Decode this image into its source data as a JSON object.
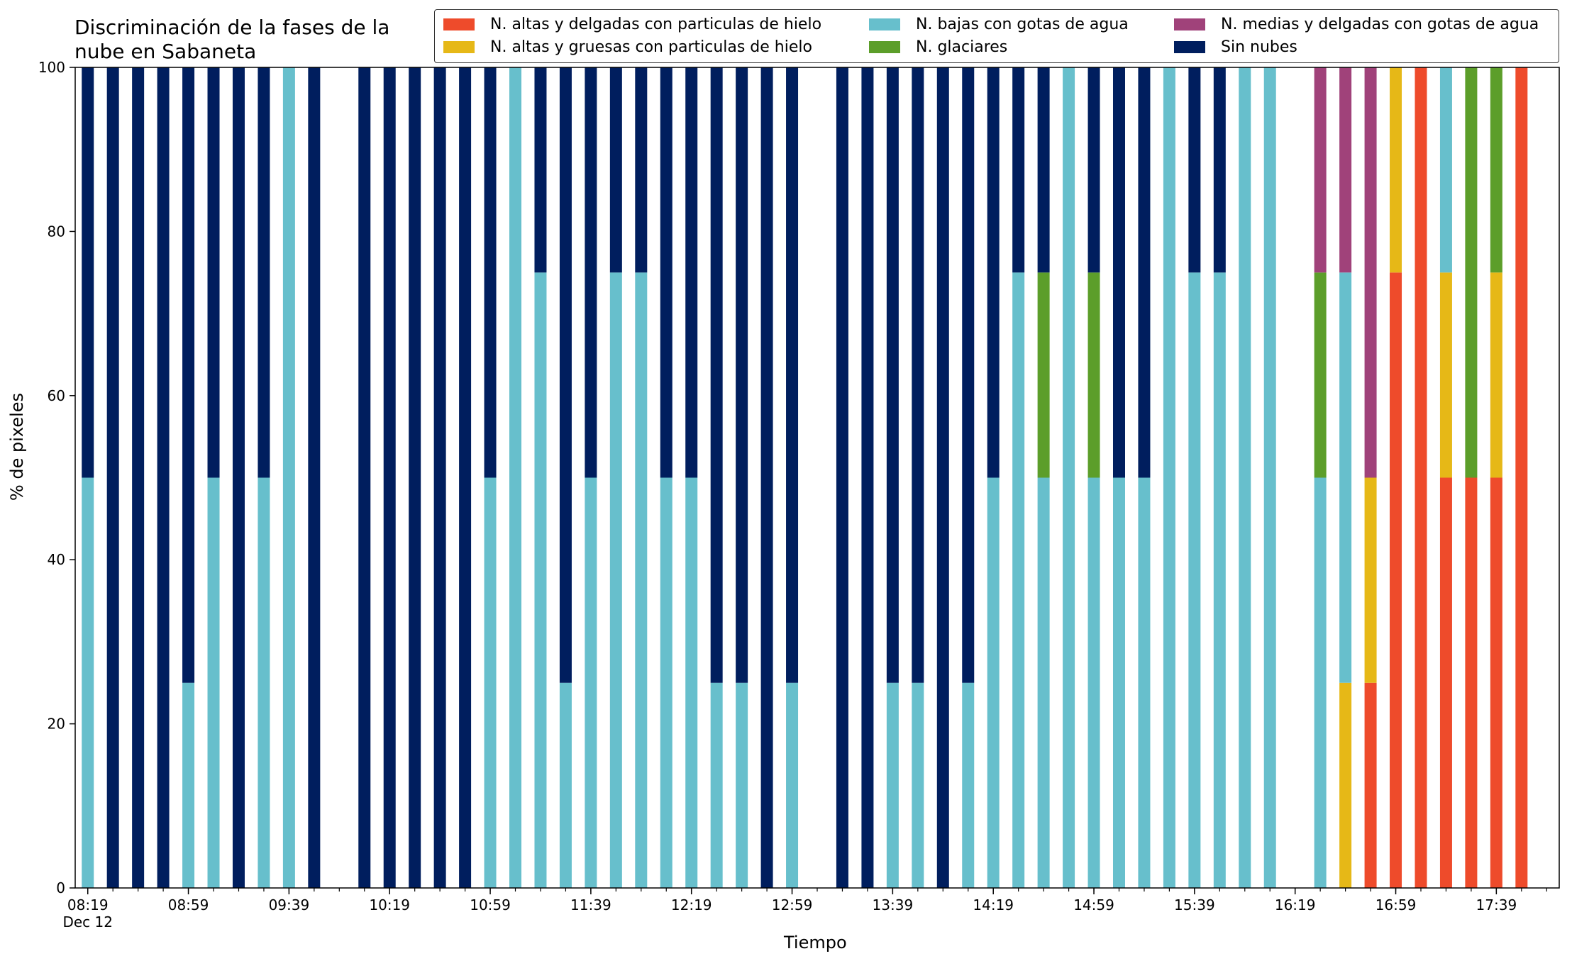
{
  "chart_data": {
    "type": "bar",
    "stacked": true,
    "title": "Discriminación de la fases de la\nnube en Sabaneta",
    "xlabel": "Tiempo",
    "ylabel": "% de pixeles",
    "ylim": [
      0,
      100
    ],
    "yticks": [
      "0",
      "20",
      "40",
      "60",
      "80",
      "100"
    ],
    "xticks": [
      {
        "label": "08:19\nDec 12",
        "minute": 0
      },
      {
        "label": "08:59",
        "minute": 40
      },
      {
        "label": "09:39",
        "minute": 80
      },
      {
        "label": "10:19",
        "minute": 120
      },
      {
        "label": "10:59",
        "minute": 160
      },
      {
        "label": "11:39",
        "minute": 200
      },
      {
        "label": "12:19",
        "minute": 240
      },
      {
        "label": "12:59",
        "minute": 280
      },
      {
        "label": "13:39",
        "minute": 320
      },
      {
        "label": "14:19",
        "minute": 360
      },
      {
        "label": "14:59",
        "minute": 400
      },
      {
        "label": "15:39",
        "minute": 440
      },
      {
        "label": "16:19",
        "minute": 480
      },
      {
        "label": "16:59",
        "minute": 520
      },
      {
        "label": "17:39",
        "minute": 560
      }
    ],
    "xlim_minutes": [
      -5,
      585
    ],
    "legend_position": "top-right",
    "series": [
      {
        "name": "N. altas y delgadas con particulas de hielo",
        "color": "#EE4B2B"
      },
      {
        "name": "N. altas y gruesas con particulas de hielo",
        "color": "#E6B817"
      },
      {
        "name": "N. bajas con gotas de agua",
        "color": "#67BFCC"
      },
      {
        "name": "N. glaciares",
        "color": "#5C9E2A"
      },
      {
        "name": "N. medias y delgadas con gotas de agua",
        "color": "#A0427A"
      },
      {
        "name": "Sin nubes",
        "color": "#001E5E"
      }
    ],
    "bars": [
      {
        "minute": 0,
        "values": [
          0,
          0,
          50,
          0,
          0,
          50
        ]
      },
      {
        "minute": 10,
        "values": [
          0,
          0,
          0,
          0,
          0,
          100
        ]
      },
      {
        "minute": 20,
        "values": [
          0,
          0,
          0,
          0,
          0,
          100
        ]
      },
      {
        "minute": 30,
        "values": [
          0,
          0,
          0,
          0,
          0,
          100
        ]
      },
      {
        "minute": 40,
        "values": [
          0,
          0,
          25,
          0,
          0,
          75
        ]
      },
      {
        "minute": 50,
        "values": [
          0,
          0,
          50,
          0,
          0,
          50
        ]
      },
      {
        "minute": 60,
        "values": [
          0,
          0,
          0,
          0,
          0,
          100
        ]
      },
      {
        "minute": 70,
        "values": [
          0,
          0,
          50,
          0,
          0,
          50
        ]
      },
      {
        "minute": 80,
        "values": [
          0,
          0,
          100,
          0,
          0,
          0
        ]
      },
      {
        "minute": 90,
        "values": [
          0,
          0,
          0,
          0,
          0,
          100
        ]
      },
      {
        "minute": 110,
        "values": [
          0,
          0,
          0,
          0,
          0,
          100
        ]
      },
      {
        "minute": 120,
        "values": [
          0,
          0,
          0,
          0,
          0,
          100
        ]
      },
      {
        "minute": 130,
        "values": [
          0,
          0,
          0,
          0,
          0,
          100
        ]
      },
      {
        "minute": 140,
        "values": [
          0,
          0,
          0,
          0,
          0,
          100
        ]
      },
      {
        "minute": 150,
        "values": [
          0,
          0,
          0,
          0,
          0,
          100
        ]
      },
      {
        "minute": 160,
        "values": [
          0,
          0,
          50,
          0,
          0,
          50
        ]
      },
      {
        "minute": 170,
        "values": [
          0,
          0,
          100,
          0,
          0,
          0
        ]
      },
      {
        "minute": 180,
        "values": [
          0,
          0,
          75,
          0,
          0,
          25
        ]
      },
      {
        "minute": 190,
        "values": [
          0,
          0,
          25,
          0,
          0,
          75
        ]
      },
      {
        "minute": 200,
        "values": [
          0,
          0,
          50,
          0,
          0,
          50
        ]
      },
      {
        "minute": 210,
        "values": [
          0,
          0,
          75,
          0,
          0,
          25
        ]
      },
      {
        "minute": 220,
        "values": [
          0,
          0,
          75,
          0,
          0,
          25
        ]
      },
      {
        "minute": 230,
        "values": [
          0,
          0,
          50,
          0,
          0,
          50
        ]
      },
      {
        "minute": 240,
        "values": [
          0,
          0,
          50,
          0,
          0,
          50
        ]
      },
      {
        "minute": 250,
        "values": [
          0,
          0,
          25,
          0,
          0,
          75
        ]
      },
      {
        "minute": 260,
        "values": [
          0,
          0,
          25,
          0,
          0,
          75
        ]
      },
      {
        "minute": 270,
        "values": [
          0,
          0,
          0,
          0,
          0,
          100
        ]
      },
      {
        "minute": 280,
        "values": [
          0,
          0,
          25,
          0,
          0,
          75
        ]
      },
      {
        "minute": 300,
        "values": [
          0,
          0,
          0,
          0,
          0,
          100
        ]
      },
      {
        "minute": 310,
        "values": [
          0,
          0,
          0,
          0,
          0,
          100
        ]
      },
      {
        "minute": 320,
        "values": [
          0,
          0,
          25,
          0,
          0,
          75
        ]
      },
      {
        "minute": 330,
        "values": [
          0,
          0,
          25,
          0,
          0,
          75
        ]
      },
      {
        "minute": 340,
        "values": [
          0,
          0,
          0,
          0,
          0,
          100
        ]
      },
      {
        "minute": 350,
        "values": [
          0,
          0,
          25,
          0,
          0,
          75
        ]
      },
      {
        "minute": 360,
        "values": [
          0,
          0,
          50,
          0,
          0,
          50
        ]
      },
      {
        "minute": 370,
        "values": [
          0,
          0,
          75,
          0,
          0,
          25
        ]
      },
      {
        "minute": 380,
        "values": [
          0,
          0,
          50,
          25,
          0,
          25
        ]
      },
      {
        "minute": 390,
        "values": [
          0,
          0,
          100,
          0,
          0,
          0
        ]
      },
      {
        "minute": 400,
        "values": [
          0,
          0,
          50,
          25,
          0,
          25
        ]
      },
      {
        "minute": 410,
        "values": [
          0,
          0,
          50,
          0,
          0,
          50
        ]
      },
      {
        "minute": 420,
        "values": [
          0,
          0,
          50,
          0,
          0,
          50
        ]
      },
      {
        "minute": 430,
        "values": [
          0,
          0,
          100,
          0,
          0,
          0
        ]
      },
      {
        "minute": 440,
        "values": [
          0,
          0,
          75,
          0,
          0,
          25
        ]
      },
      {
        "minute": 450,
        "values": [
          0,
          0,
          75,
          0,
          0,
          25
        ]
      },
      {
        "minute": 460,
        "values": [
          0,
          0,
          100,
          0,
          0,
          0
        ]
      },
      {
        "minute": 470,
        "values": [
          0,
          0,
          100,
          0,
          0,
          0
        ]
      },
      {
        "minute": 490,
        "values": [
          0,
          0,
          50,
          25,
          25,
          0
        ]
      },
      {
        "minute": 500,
        "values": [
          0,
          25,
          50,
          0,
          25,
          0
        ]
      },
      {
        "minute": 510,
        "values": [
          25,
          25,
          0,
          0,
          50,
          0
        ]
      },
      {
        "minute": 520,
        "values": [
          75,
          25,
          0,
          0,
          0,
          0
        ]
      },
      {
        "minute": 530,
        "values": [
          100,
          0,
          0,
          0,
          0,
          0
        ]
      },
      {
        "minute": 540,
        "values": [
          50,
          25,
          25,
          0,
          0,
          0
        ]
      },
      {
        "minute": 550,
        "values": [
          50,
          0,
          0,
          50,
          0,
          0
        ]
      },
      {
        "minute": 560,
        "values": [
          50,
          25,
          0,
          25,
          0,
          0
        ]
      },
      {
        "minute": 570,
        "values": [
          100,
          0,
          0,
          0,
          0,
          0
        ]
      }
    ]
  }
}
